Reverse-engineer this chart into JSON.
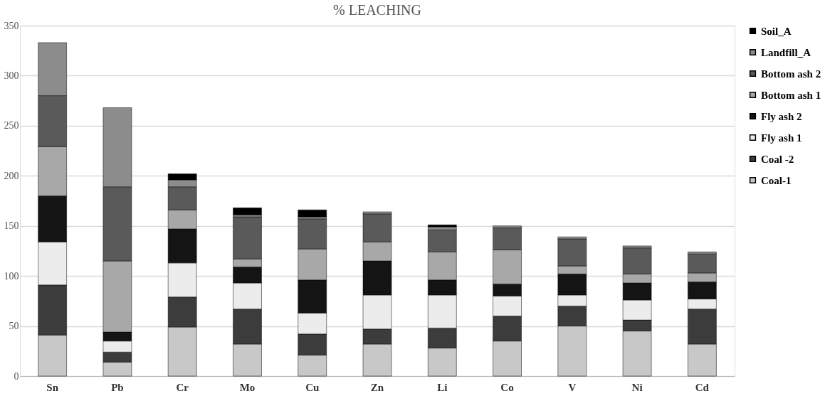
{
  "chart_data": {
    "type": "bar",
    "title": "% LEACHING",
    "stacked": true,
    "categories": [
      "Sn",
      "Pb",
      "Cr",
      "Mo",
      "Cu",
      "Zn",
      "Li",
      "Co",
      "V",
      "Ni",
      "Cd"
    ],
    "series": [
      {
        "name": "Coal-1",
        "color": "#c8c8c8",
        "values": [
          41,
          14,
          49,
          32,
          21,
          32,
          28,
          35,
          50,
          45,
          32
        ]
      },
      {
        "name": "Coal -2",
        "color": "#3c3c3c",
        "values": [
          50,
          10,
          30,
          35,
          21,
          15,
          20,
          25,
          20,
          11,
          35
        ]
      },
      {
        "name": "Fly ash 1",
        "color": "#ececec",
        "values": [
          43,
          11,
          34,
          26,
          21,
          34,
          33,
          20,
          11,
          20,
          10
        ]
      },
      {
        "name": "Fly ash 2",
        "color": "#141414",
        "values": [
          46,
          9,
          34,
          16,
          33,
          34,
          15,
          12,
          21,
          17,
          17
        ]
      },
      {
        "name": "Bottom ash 1",
        "color": "#a8a8a8",
        "values": [
          49,
          71,
          19,
          8,
          31,
          19,
          28,
          34,
          8,
          9,
          9
        ]
      },
      {
        "name": "Bottom ash 2",
        "color": "#5a5a5a",
        "values": [
          51,
          74,
          23,
          42,
          30,
          28,
          22,
          22,
          27,
          26,
          19
        ]
      },
      {
        "name": "Landfill_A",
        "color": "#8c8c8c",
        "values": [
          53,
          79,
          7,
          2,
          2,
          2,
          3,
          2,
          2,
          2,
          2
        ]
      },
      {
        "name": "Soil_A",
        "color": "#000000",
        "values": [
          null,
          null,
          6,
          7,
          7,
          null,
          2,
          null,
          null,
          null,
          null
        ]
      }
    ],
    "ylim": [
      0,
      350
    ],
    "yticks": [
      0,
      50,
      100,
      150,
      200,
      250,
      300,
      350
    ],
    "grid": "y",
    "legend": "right"
  }
}
